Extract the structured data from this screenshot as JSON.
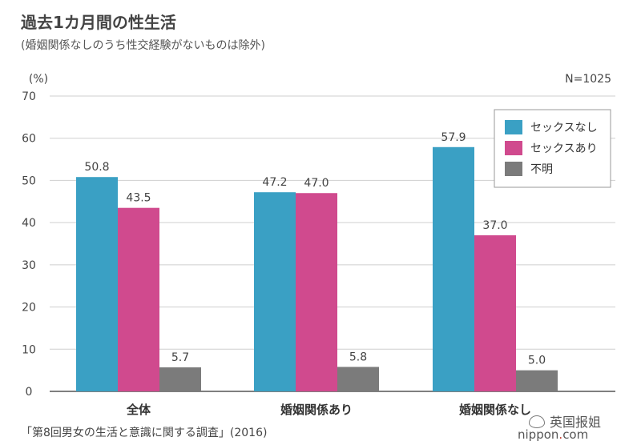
{
  "chart_data": {
    "type": "bar",
    "title": "過去1カ月間の性生活",
    "subtitle": "(婚姻関係なしのうち性交経験がないものは除外)",
    "ylabel": "(%)",
    "annotation": "N=1025",
    "ylim": [
      0,
      70
    ],
    "yticks": [
      "0",
      "10",
      "20",
      "30",
      "40",
      "50",
      "60",
      "70"
    ],
    "categories": [
      "全体",
      "婚姻関係あり",
      "婚姻関係なし"
    ],
    "series": [
      {
        "name": "セックスなし",
        "color": "#3aa0c4",
        "values": [
          50.8,
          47.2,
          57.9
        ],
        "labels": [
          "50.8",
          "47.2",
          "57.9"
        ]
      },
      {
        "name": "セックスあり",
        "color": "#d04a8e",
        "values": [
          43.5,
          47.0,
          37.0
        ],
        "labels": [
          "43.5",
          "47.0",
          "37.0"
        ]
      },
      {
        "name": "不明",
        "color": "#7b7b7b",
        "values": [
          5.7,
          5.8,
          5.0
        ],
        "labels": [
          "5.7",
          "5.8",
          "5.0"
        ]
      }
    ],
    "grid": true,
    "legend_position": "top-right"
  },
  "source": "「第8回男女の生活と意識に関する調査」(2016)",
  "watermark": "英国报姐",
  "brand": {
    "name": "nippon",
    "dot": ".",
    "suffix": "com"
  }
}
